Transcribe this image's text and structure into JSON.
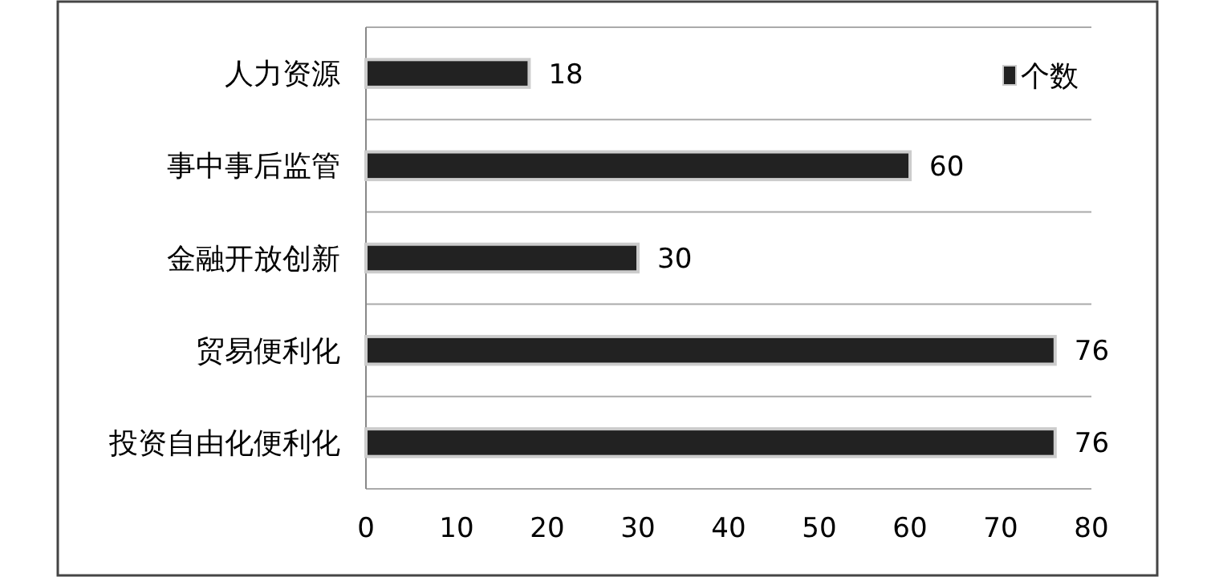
{
  "chart_data": {
    "type": "bar",
    "orientation": "horizontal",
    "categories": [
      "人力资源",
      "事中事后监管",
      "金融开放创新",
      "贸易便利化",
      "投资自由化便利化"
    ],
    "series": [
      {
        "name": "个数",
        "color": "#222222",
        "values": [
          18,
          60,
          30,
          76,
          76
        ]
      }
    ],
    "xlim": [
      0,
      80
    ],
    "xticks": [
      0,
      10,
      20,
      30,
      40,
      50,
      60,
      70,
      80
    ],
    "grid": "y",
    "legend": "top right",
    "data_labels": true
  }
}
